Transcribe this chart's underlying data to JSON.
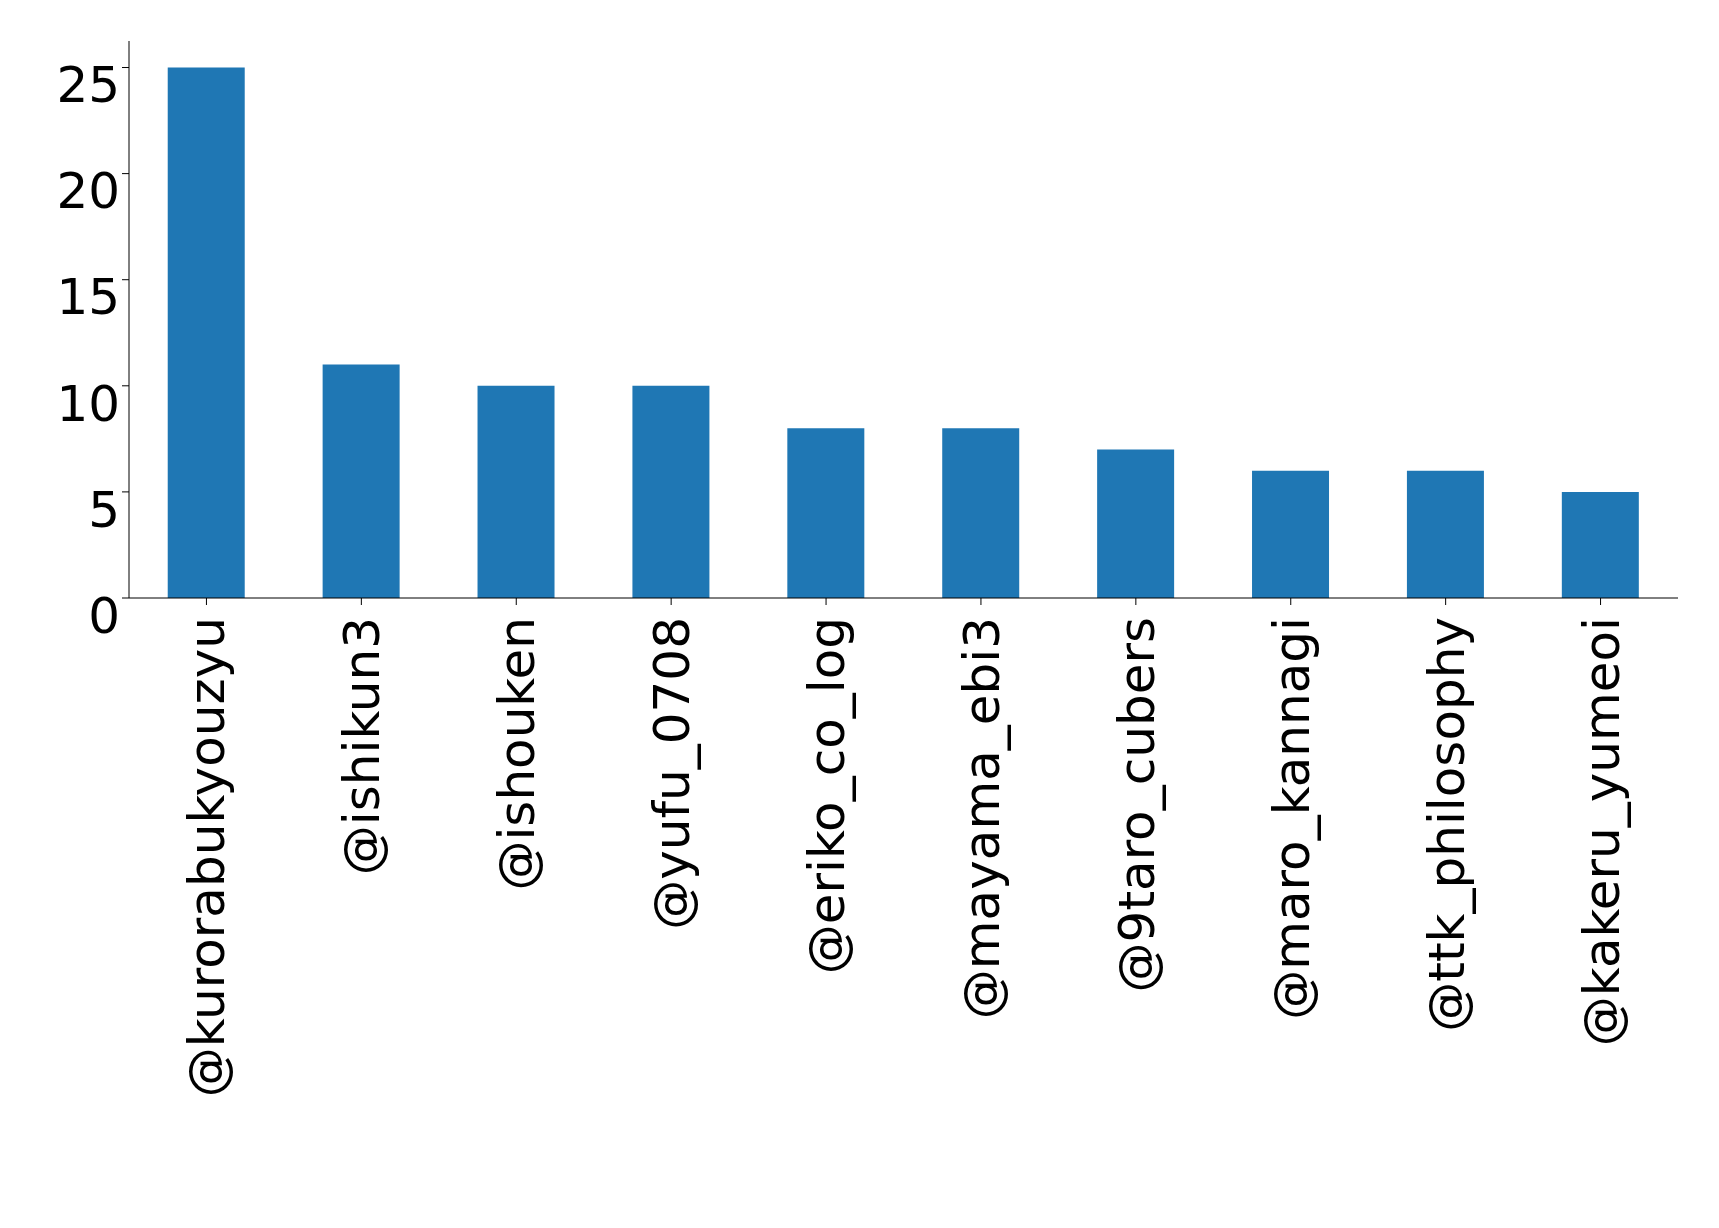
{
  "chart_data": {
    "type": "bar",
    "categories": [
      "@kurorabukyouzyu",
      "@ishikun3",
      "@ishouken",
      "@yufu_0708",
      "@eriko_co_log",
      "@mayama_ebi3",
      "@9taro_cubers",
      "@maro_kannagi",
      "@ttk_philosophy",
      "@kakeru_yumeoi"
    ],
    "values": [
      25,
      11,
      10,
      10,
      8,
      8,
      7,
      6,
      6,
      5
    ],
    "color": "#1f77b4",
    "ylim": [
      0,
      26.25
    ],
    "yticks": [
      0,
      5,
      10,
      15,
      20,
      25
    ]
  }
}
